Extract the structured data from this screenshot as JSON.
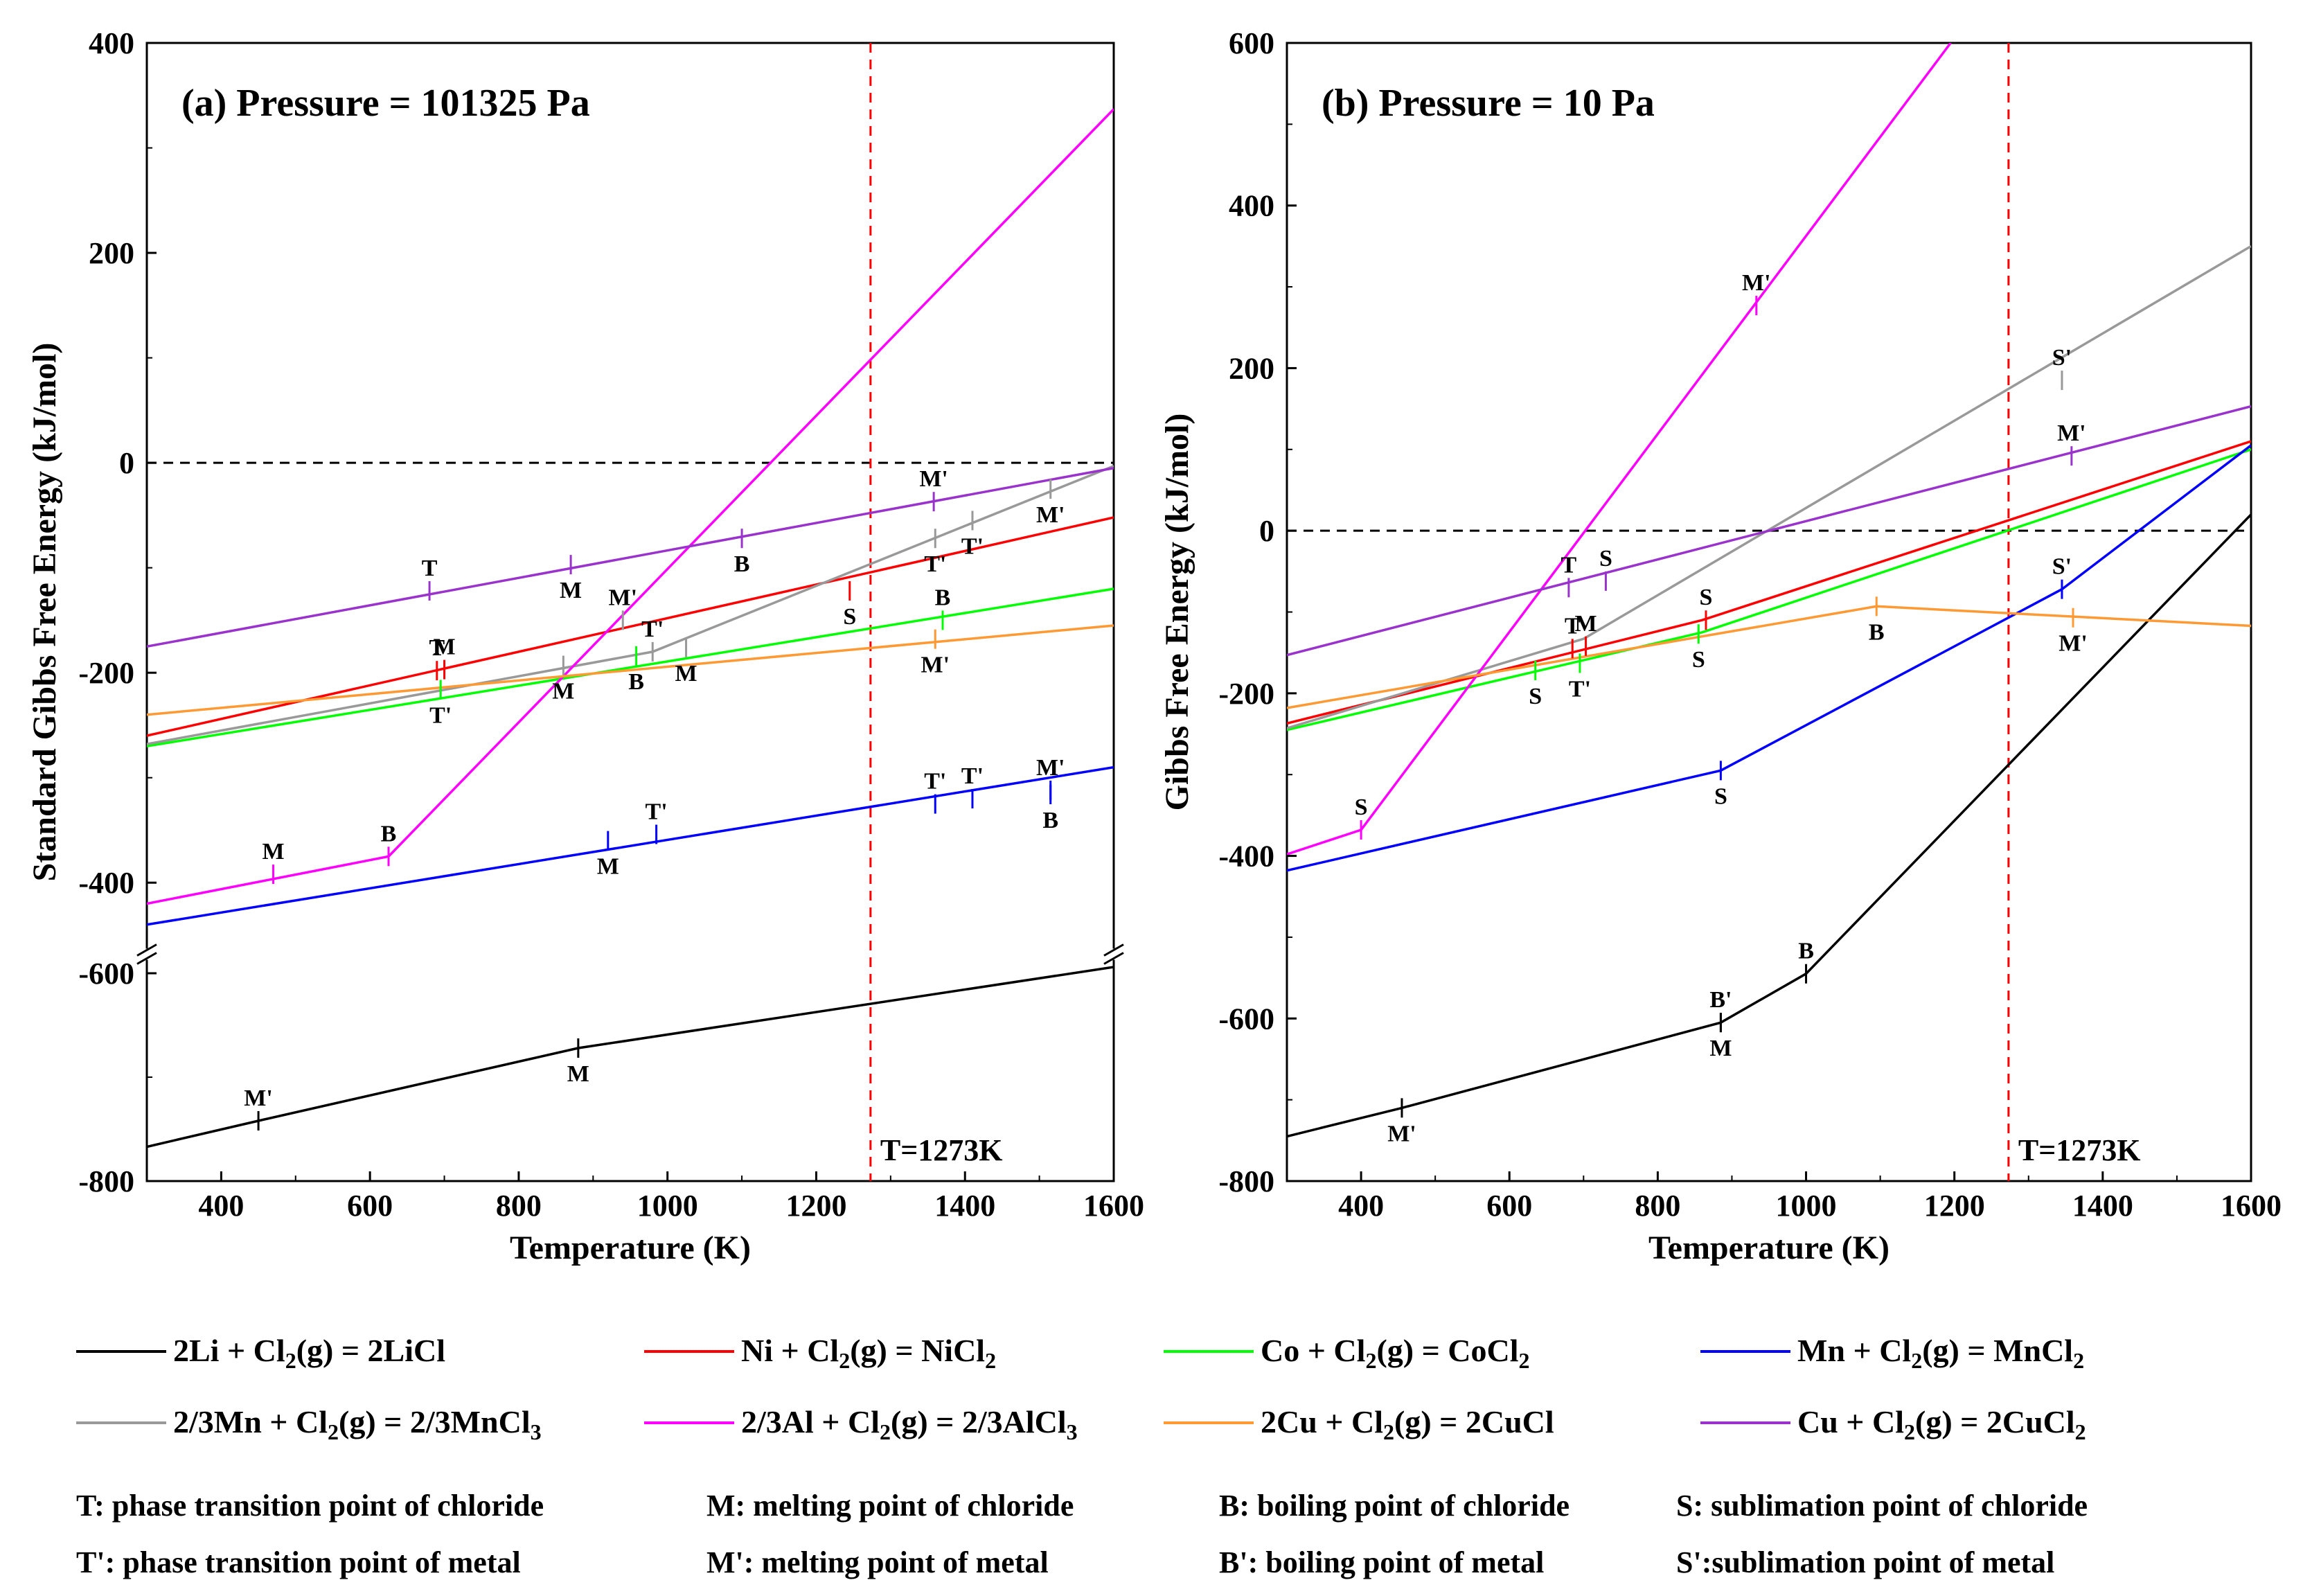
{
  "chart_data": [
    {
      "type": "line",
      "title": "(a) Pressure = 101325 Pa",
      "xlabel": "Temperature (K)",
      "ylabel": "Standard Gibbs Free Energy (kJ/mol)",
      "xlim": [
        300,
        1600
      ],
      "ylim_upper": [
        -450,
        400
      ],
      "ylim_lower": [
        -800,
        -600
      ],
      "axis_break": true,
      "xticks": [
        400,
        600,
        800,
        1000,
        1200,
        1400,
        1600
      ],
      "yticks": [
        400,
        200,
        0,
        -200,
        -400,
        -600,
        -800
      ],
      "vline": {
        "x": 1273,
        "label": "T=1273K",
        "color": "#ff0000"
      },
      "hline": {
        "y": 0
      },
      "series": [
        {
          "key": "LiCl",
          "color": "#000000",
          "x": [
            300,
            450,
            880,
            1600
          ],
          "y": [
            -767,
            -742,
            -672,
            -594
          ]
        },
        {
          "key": "NiCl2",
          "color": "#ff0000",
          "x": [
            300,
            1600
          ],
          "y": [
            -260,
            -52
          ]
        },
        {
          "key": "CoCl2",
          "color": "#00ff00",
          "x": [
            300,
            1600
          ],
          "y": [
            -270,
            -120
          ]
        },
        {
          "key": "MnCl2",
          "color": "#0000ff",
          "x": [
            300,
            1600
          ],
          "y": [
            -440,
            -290
          ]
        },
        {
          "key": "MnCl3",
          "color": "#999999",
          "x": [
            300,
            980,
            1600
          ],
          "y": [
            -268,
            -180,
            -3
          ]
        },
        {
          "key": "AlCl3",
          "color": "#ff00ff",
          "x": [
            300,
            625,
            1600
          ],
          "y": [
            -420,
            -375,
            337
          ]
        },
        {
          "key": "CuCl",
          "color": "#ff9933",
          "x": [
            300,
            1600
          ],
          "y": [
            -240,
            -155
          ]
        },
        {
          "key": "CuCl2",
          "color": "#9933cc",
          "x": [
            300,
            1600
          ],
          "y": [
            -175,
            -5
          ]
        }
      ],
      "annotations": [
        {
          "text": "T",
          "x": 680,
          "y": -122,
          "series": "CuCl2",
          "pos": "above"
        },
        {
          "text": "M",
          "x": 870,
          "y": -97,
          "series": "CuCl2",
          "pos": "below"
        },
        {
          "text": "B",
          "x": 1100,
          "y": -72,
          "series": "CuCl2",
          "pos": "below"
        },
        {
          "text": "M'",
          "x": 1358,
          "y": -37,
          "series": "CuCl2",
          "pos": "above"
        },
        {
          "text": "M'",
          "x": 1515,
          "y": -25,
          "series": "MnCl3",
          "pos": "below"
        },
        {
          "text": "T'",
          "x": 1360,
          "y": -72,
          "series": "MnCl3",
          "pos": "below"
        },
        {
          "text": "T'",
          "x": 1410,
          "y": -55,
          "series": "MnCl3",
          "pos": "below"
        },
        {
          "text": "S",
          "x": 1245,
          "y": -122,
          "series": "NiCl2",
          "pos": "below"
        },
        {
          "text": "M'",
          "x": 940,
          "y": -150,
          "series": "MnCl3",
          "pos": "above"
        },
        {
          "text": "T'",
          "x": 980,
          "y": -180,
          "series": "MnCl3",
          "pos": "above"
        },
        {
          "text": "B",
          "x": 1370,
          "y": -150,
          "series": "CoCl2",
          "pos": "above"
        },
        {
          "text": "M'",
          "x": 1360,
          "y": -168,
          "series": "CuCl",
          "pos": "below"
        },
        {
          "text": "T",
          "x": 690,
          "y": -198,
          "series": "NiCl2",
          "pos": "above"
        },
        {
          "text": "M",
          "x": 700,
          "y": -197,
          "series": "NiCl2",
          "pos": "above"
        },
        {
          "text": "T'",
          "x": 695,
          "y": -216,
          "series": "CoCl2",
          "pos": "below"
        },
        {
          "text": "M",
          "x": 860,
          "y": -193,
          "series": "MnCl3",
          "pos": "below"
        },
        {
          "text": "B",
          "x": 958,
          "y": -184,
          "series": "CoCl2",
          "pos": "below"
        },
        {
          "text": "M",
          "x": 1025,
          "y": -176,
          "series": "MnCl3",
          "pos": "below"
        },
        {
          "text": "M",
          "x": 470,
          "y": -392,
          "series": "AlCl3",
          "pos": "above"
        },
        {
          "text": "B",
          "x": 625,
          "y": -375,
          "series": "AlCl3",
          "pos": "above"
        },
        {
          "text": "M",
          "x": 920,
          "y": -360,
          "series": "MnCl2",
          "pos": "below"
        },
        {
          "text": "T'",
          "x": 985,
          "y": -354,
          "series": "MnCl2",
          "pos": "above"
        },
        {
          "text": "T'",
          "x": 1360,
          "y": -325,
          "series": "MnCl2",
          "pos": "above"
        },
        {
          "text": "T'",
          "x": 1410,
          "y": -320,
          "series": "MnCl2",
          "pos": "above"
        },
        {
          "text": "M'",
          "x": 1515,
          "y": -312,
          "series": "MnCl2",
          "pos": "above"
        },
        {
          "text": "B",
          "x": 1515,
          "y": -316,
          "series": "MnCl2",
          "pos": "below"
        },
        {
          "text": "M'",
          "x": 450,
          "y": -742,
          "series": "LiCl",
          "pos": "above"
        },
        {
          "text": "M",
          "x": 880,
          "y": -672,
          "series": "LiCl",
          "pos": "below"
        }
      ]
    },
    {
      "type": "line",
      "title": "(b) Pressure = 10 Pa",
      "xlabel": "Temperature (K)",
      "ylabel": "Gibbs Free Energy (kJ/mol)",
      "xlim": [
        300,
        1600
      ],
      "ylim": [
        -800,
        600
      ],
      "xticks": [
        400,
        600,
        800,
        1000,
        1200,
        1400,
        1600
      ],
      "yticks": [
        600,
        400,
        200,
        0,
        -200,
        -400,
        -600,
        -800
      ],
      "vline": {
        "x": 1273,
        "label": "T=1273K",
        "color": "#ff0000"
      },
      "hline": {
        "y": 0
      },
      "series": [
        {
          "key": "LiCl",
          "color": "#000000",
          "x": [
            300,
            455,
            885,
            1000,
            1600
          ],
          "y": [
            -745,
            -710,
            -605,
            -545,
            20
          ]
        },
        {
          "key": "NiCl2",
          "color": "#ff0000",
          "x": [
            300,
            860,
            1600
          ],
          "y": [
            -237,
            -110,
            110
          ]
        },
        {
          "key": "CoCl2",
          "color": "#00ff00",
          "x": [
            300,
            860,
            1600
          ],
          "y": [
            -245,
            -125,
            100
          ]
        },
        {
          "key": "MnCl2",
          "color": "#0000ff",
          "x": [
            300,
            885,
            1345,
            1600
          ],
          "y": [
            -418,
            -295,
            -72,
            105
          ]
        },
        {
          "key": "MnCl3",
          "color": "#999999",
          "x": [
            300,
            700,
            1600
          ],
          "y": [
            -243,
            -133,
            350
          ]
        },
        {
          "key": "AlCl3",
          "color": "#ff00ff",
          "x": [
            300,
            400,
            1195
          ],
          "y": [
            -398,
            -368,
            600
          ]
        },
        {
          "key": "CuCl",
          "color": "#ff9933",
          "x": [
            300,
            1095,
            1600
          ],
          "y": [
            -218,
            -93,
            -117
          ]
        },
        {
          "key": "CuCl2",
          "color": "#9933cc",
          "x": [
            300,
            1600
          ],
          "y": [
            -153,
            153
          ]
        }
      ],
      "annotations": [
        {
          "text": "M'",
          "x": 933,
          "y": 277,
          "series": "AlCl3",
          "pos": "above"
        },
        {
          "text": "S'",
          "x": 1345,
          "y": 185,
          "series": "MnCl3",
          "pos": "above"
        },
        {
          "text": "M'",
          "x": 1358,
          "y": 92,
          "series": "CuCl2",
          "pos": "above"
        },
        {
          "text": "T",
          "x": 680,
          "y": -70,
          "series": "CuCl2",
          "pos": "above"
        },
        {
          "text": "S",
          "x": 730,
          "y": -62,
          "series": "CuCl2",
          "pos": "above"
        },
        {
          "text": "T",
          "x": 685,
          "y": -145,
          "series": "NiCl2",
          "pos": "above"
        },
        {
          "text": "M",
          "x": 703,
          "y": -142,
          "series": "NiCl2",
          "pos": "above"
        },
        {
          "text": "S",
          "x": 865,
          "y": -110,
          "series": "NiCl2",
          "pos": "above"
        },
        {
          "text": "S",
          "x": 635,
          "y": -172,
          "series": "CoCl2",
          "pos": "below"
        },
        {
          "text": "T'",
          "x": 695,
          "y": -163,
          "series": "CoCl2",
          "pos": "below"
        },
        {
          "text": "S",
          "x": 855,
          "y": -127,
          "series": "CoCl2",
          "pos": "below"
        },
        {
          "text": "B",
          "x": 1095,
          "y": -93,
          "series": "CuCl",
          "pos": "below"
        },
        {
          "text": "S'",
          "x": 1345,
          "y": -72,
          "series": "MnCl2",
          "pos": "above"
        },
        {
          "text": "M'",
          "x": 1360,
          "y": -107,
          "series": "CuCl",
          "pos": "below"
        },
        {
          "text": "S",
          "x": 400,
          "y": -368,
          "series": "AlCl3",
          "pos": "above"
        },
        {
          "text": "S",
          "x": 885,
          "y": -295,
          "series": "MnCl2",
          "pos": "below"
        },
        {
          "text": "B",
          "x": 1000,
          "y": -545,
          "series": "LiCl",
          "pos": "above"
        },
        {
          "text": "B'",
          "x": 885,
          "y": -605,
          "series": "LiCl",
          "pos": "above"
        },
        {
          "text": "M",
          "x": 885,
          "y": -605,
          "series": "LiCl",
          "pos": "below"
        },
        {
          "text": "M'",
          "x": 455,
          "y": -710,
          "series": "LiCl",
          "pos": "below"
        }
      ]
    }
  ],
  "legend": [
    {
      "key": "LiCl",
      "color": "#000000",
      "label": "2Li + Cl",
      "sub1": "2",
      "mid": "(g) = 2LiCl",
      "sub2": "",
      "tail": ""
    },
    {
      "key": "NiCl2",
      "color": "#ff0000",
      "label": "Ni + Cl",
      "sub1": "2",
      "mid": "(g) = NiCl",
      "sub2": "2",
      "tail": ""
    },
    {
      "key": "CoCl2",
      "color": "#00ff00",
      "label": "Co + Cl",
      "sub1": "2",
      "mid": "(g) = CoCl",
      "sub2": "2",
      "tail": ""
    },
    {
      "key": "MnCl2",
      "color": "#0000ff",
      "label": "Mn + Cl",
      "sub1": "2",
      "mid": "(g) = MnCl",
      "sub2": "2",
      "tail": ""
    },
    {
      "key": "MnCl3",
      "color": "#999999",
      "label": "2/3Mn + Cl",
      "sub1": "2",
      "mid": "(g) = 2/3MnCl",
      "sub2": "3",
      "tail": ""
    },
    {
      "key": "AlCl3",
      "color": "#ff00ff",
      "label": "2/3Al + Cl",
      "sub1": "2",
      "mid": "(g) = 2/3AlCl",
      "sub2": "3",
      "tail": ""
    },
    {
      "key": "CuCl",
      "color": "#ff9933",
      "label": "2Cu + Cl",
      "sub1": "2",
      "mid": "(g) = 2CuCl",
      "sub2": "",
      "tail": ""
    },
    {
      "key": "CuCl2",
      "color": "#9933cc",
      "label": "Cu + Cl",
      "sub1": "2",
      "mid": "(g) = 2CuCl",
      "sub2": "2",
      "tail": ""
    }
  ],
  "notes": [
    [
      "T: phase transition point of chloride",
      "M:  melting point of chloride",
      "B: boiling point of chloride",
      "S: sublimation point of chloride"
    ],
    [
      "T': phase transition point of metal",
      "M': melting point of metal",
      "B':  boiling point of metal",
      "S':sublimation point of metal"
    ]
  ]
}
